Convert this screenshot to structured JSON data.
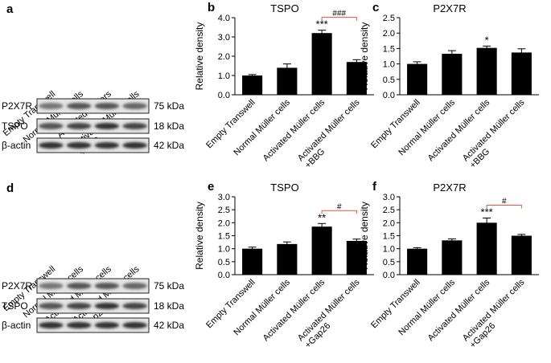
{
  "blots": [
    {
      "panel": "a",
      "lanes": [
        "Empty Transwell",
        "Normal Müller cells",
        "Activated Müllers",
        "Activated Müller cells\n+BBG"
      ],
      "rows": [
        {
          "protein": "P2X7R",
          "size": "75 kDa"
        },
        {
          "protein": "TSPO",
          "size": "18 kDa"
        },
        {
          "protein": "β-actin",
          "size": "42 kDa"
        }
      ]
    },
    {
      "panel": "d",
      "lanes": [
        "Empty Transwell",
        "Normal Müller cells",
        "Activated Müller cells",
        "Activated Müller cells\n+Gap26"
      ],
      "rows": [
        {
          "protein": "P2X7R",
          "size": "75 kDa"
        },
        {
          "protein": "TSPO",
          "size": "18 kDa"
        },
        {
          "protein": "β-actin",
          "size": "42 kDa"
        }
      ]
    }
  ],
  "chart_data": [
    {
      "type": "bar",
      "panel": "b",
      "title": "TSPO",
      "ylabel": "Relative density",
      "color": "#000000",
      "categories": [
        "Empty Transwell",
        "Normal Müller cells",
        "Activated Müller cells",
        "Activated Müller cells\n+BBG"
      ],
      "values": [
        1.0,
        1.4,
        3.2,
        1.7
      ],
      "errors": [
        0.05,
        0.2,
        0.15,
        0.12
      ],
      "bar_labels": [
        null,
        null,
        "***",
        null
      ],
      "comparison": {
        "label": "###",
        "between": [
          2,
          3
        ],
        "color": "#e8553f"
      },
      "ylim": [
        0,
        4
      ],
      "yticks": [
        {
          "value": 0,
          "label": "0.0"
        },
        {
          "value": 1,
          "label": "1.0"
        },
        {
          "value": 2,
          "label": "2.0"
        },
        {
          "value": 3,
          "label": "3.0"
        },
        {
          "value": 4,
          "label": "4.0"
        }
      ]
    },
    {
      "type": "bar",
      "panel": "c",
      "title": "P2X7R",
      "ylabel": "Relative density",
      "color": "#000000",
      "categories": [
        "Empty Transwell",
        "Normal Müller cells",
        "Activated Müller cells",
        "Activated Müller cells\n+BBG"
      ],
      "values": [
        1.0,
        1.33,
        1.52,
        1.37
      ],
      "errors": [
        0.07,
        0.1,
        0.06,
        0.12
      ],
      "bar_labels": [
        null,
        null,
        "*",
        null
      ],
      "ylim": [
        0,
        2.5
      ],
      "yticks": [
        {
          "value": 0,
          "label": "0.0"
        },
        0.5,
        {
          "value": 1,
          "label": "1.0"
        },
        1.5,
        {
          "value": 2,
          "label": "2.0"
        },
        2.5
      ]
    },
    {
      "type": "bar",
      "panel": "e",
      "title": "TSPO",
      "ylabel": "Relative density",
      "color": "#000000",
      "categories": [
        "Empty Transwell",
        "Normal Müller cells",
        "Activated Müller cells",
        "Activated Müller cells\n+Gap26"
      ],
      "values": [
        1.0,
        1.18,
        1.85,
        1.3
      ],
      "errors": [
        0.06,
        0.08,
        0.12,
        0.07
      ],
      "bar_labels": [
        null,
        null,
        "**",
        null
      ],
      "comparison": {
        "label": "#",
        "between": [
          2,
          3
        ],
        "color": "#e8553f"
      },
      "ylim": [
        0,
        3
      ],
      "yticks": [
        {
          "value": 0,
          "label": "0.0"
        },
        0.5,
        {
          "value": 1,
          "label": "1.0"
        },
        1.5,
        {
          "value": 2,
          "label": "2.0"
        },
        2.5,
        {
          "value": 3,
          "label": "3.0"
        }
      ]
    },
    {
      "type": "bar",
      "panel": "f",
      "title": "P2X7R",
      "ylabel": "Relative density",
      "color": "#000000",
      "categories": [
        "Empty Transwell",
        "Normal Müller cells",
        "Activated Müller cells",
        "Activated Müller cells\n+Gap26"
      ],
      "values": [
        1.0,
        1.32,
        2.0,
        1.5
      ],
      "errors": [
        0.04,
        0.06,
        0.18,
        0.05
      ],
      "bar_labels": [
        null,
        null,
        "***",
        null
      ],
      "comparison": {
        "label": "#",
        "between": [
          2,
          3
        ],
        "color": "#e8553f"
      },
      "ylim": [
        0,
        3
      ],
      "yticks": [
        {
          "value": 0,
          "label": "0.0"
        },
        0.5,
        {
          "value": 1,
          "label": "1.0"
        },
        1.5,
        {
          "value": 2,
          "label": "2.0"
        },
        2.5,
        {
          "value": 3,
          "label": "3.0"
        }
      ]
    }
  ]
}
